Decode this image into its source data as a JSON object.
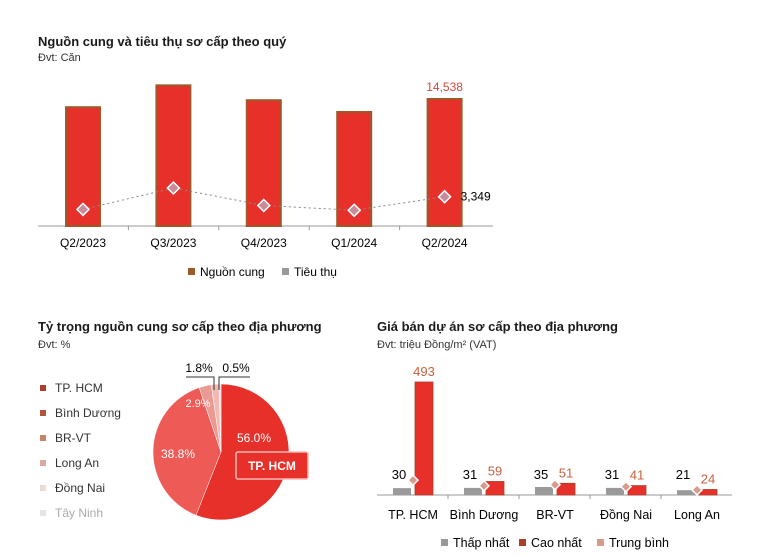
{
  "chart_data": [
    {
      "type": "bar",
      "title": "Nguồn cung và tiêu thụ sơ cấp theo quý",
      "unit": "Đvt: Căn",
      "categories": [
        "Q2/2023",
        "Q3/2023",
        "Q4/2023",
        "Q1/2024",
        "Q2/2024"
      ],
      "series": [
        {
          "name": "Nguồn cung",
          "kind": "bar",
          "color": "#e8302a",
          "values": [
            13600,
            16100,
            14400,
            13050,
            14538
          ]
        },
        {
          "name": "Tiêu thụ",
          "kind": "line-marker",
          "color": "#c98b9a",
          "values": [
            1900,
            4350,
            2350,
            1800,
            3349
          ]
        }
      ],
      "labels": {
        "last_bar": "14,538",
        "last_point": "3,349"
      },
      "legend": "bottom",
      "ylim": [
        0,
        17000
      ]
    },
    {
      "type": "pie",
      "title": "Tỷ trọng nguồn cung sơ cấp theo địa phương",
      "unit": "Đvt: %",
      "slices": [
        {
          "name": "TP. HCM",
          "value": 56.0,
          "label": "56.0%",
          "color": "#e8302a"
        },
        {
          "name": "Bình Dương",
          "value": 38.8,
          "label": "38.8%",
          "color": "#ee5a55"
        },
        {
          "name": "BR-VT",
          "value": 2.9,
          "label": "2.9%",
          "color": "#e99a93"
        },
        {
          "name": "Long An",
          "value": 1.8,
          "label": "1.8%",
          "color": "#f0b9b4"
        },
        {
          "name": "Đồng Nai",
          "value": 0.5,
          "label": "0.5%",
          "color": "#f6d6d3"
        },
        {
          "name": "Tây Ninh",
          "value": 0,
          "label": "",
          "color": "#e6e6e6"
        }
      ],
      "legend_colors": [
        "#a8402a",
        "#b0563c",
        "#c8846a",
        "#d9aaa0",
        "#eddcd6",
        "#e4e4e4"
      ],
      "callout": "TP. HCM",
      "legend": "left"
    },
    {
      "type": "bar",
      "title": "Giá bán dự án sơ cấp theo địa phương",
      "unit": "Đvt: triệu Đồng/m² (VAT)",
      "categories": [
        "TP. HCM",
        "Bình Dương",
        "BR-VT",
        "Đồng Nai",
        "Long An"
      ],
      "series": [
        {
          "name": "Thấp nhất",
          "color": "#9a9a9a",
          "values": [
            30,
            31,
            35,
            31,
            21
          ]
        },
        {
          "name": "Cao nhất",
          "color": "#e8302a",
          "values": [
            493,
            59,
            51,
            41,
            24
          ]
        },
        {
          "name": "Trung bình",
          "color": "#d99a8c",
          "values": [
            65,
            40,
            45,
            36,
            22
          ]
        }
      ],
      "legend": "bottom",
      "ylim": [
        0,
        500
      ]
    }
  ]
}
